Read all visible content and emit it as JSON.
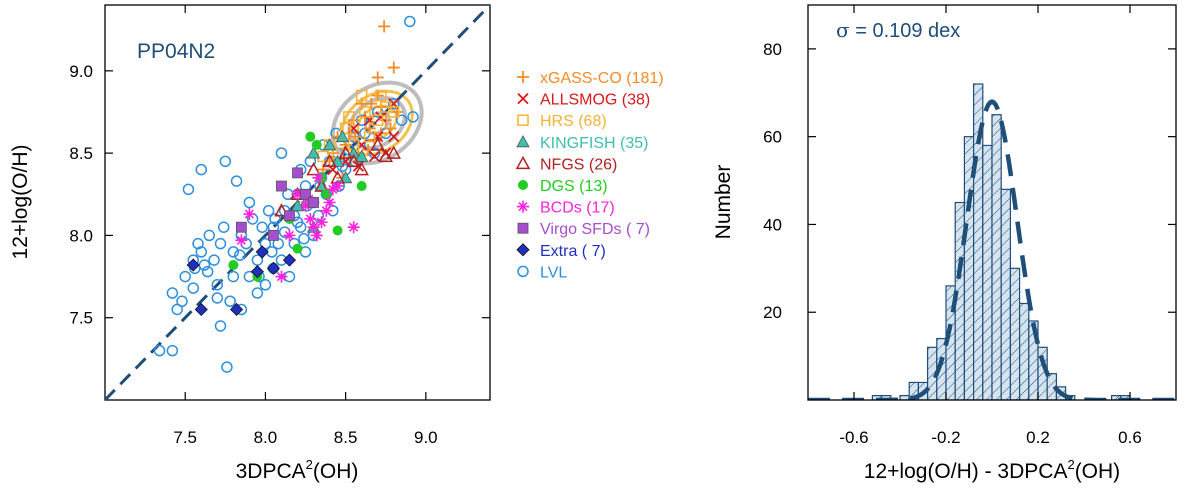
{
  "colors": {
    "axis": "#000000",
    "dash": "#1f4e79",
    "lvl": "#2e8fe0",
    "hist_fill": "#d6e4f0",
    "hist_stroke": "#1f4e79"
  },
  "chart_data": [
    {
      "type": "scatter",
      "title": "PP04N2",
      "xlabel_main": "3DPCA",
      "xlabel_sup": "2",
      "xlabel_tail": "(OH)",
      "ylabel": "12+log(O/H)",
      "xlim": [
        7.0,
        9.4
      ],
      "ylim": [
        7.0,
        9.4
      ],
      "xticks": [
        "7.5",
        "8.0",
        "8.5",
        "9.0"
      ],
      "yticks": [
        "7.5",
        "8.0",
        "8.5",
        "9.0"
      ],
      "one_to_one_line": true,
      "legend": [
        {
          "label": "xGASS-CO (181)",
          "marker": "plus",
          "color": "#f28c28"
        },
        {
          "label": "ALLSMOG (38)",
          "marker": "cross",
          "color": "#d7191c"
        },
        {
          "label": "HRS (68)",
          "marker": "square-open",
          "color": "#f5b335"
        },
        {
          "label": "KINGFISH (35)",
          "marker": "triangle-filled",
          "color": "#3fbfad"
        },
        {
          "label": "NFGS (26)",
          "marker": "triangle-open",
          "color": "#b22222"
        },
        {
          "label": "DGS (13)",
          "marker": "circle-filled",
          "color": "#22cc22"
        },
        {
          "label": "BCDs (17)",
          "marker": "asterisk",
          "color": "#ff22dd"
        },
        {
          "label": "Virgo SFDs ( 7)",
          "marker": "square-filled",
          "color": "#a64ecf"
        },
        {
          "label": "Extra ( 7)",
          "marker": "diamond-filled",
          "color": "#1f2fbf"
        },
        {
          "label": "LVL",
          "marker": "circle-open",
          "color": "#2e8fe0"
        }
      ],
      "series": [
        {
          "name": "LVL",
          "points": [
            [
              7.34,
              7.3
            ],
            [
              7.42,
              7.3
            ],
            [
              7.45,
              7.55
            ],
            [
              7.42,
              7.65
            ],
            [
              7.5,
              7.75
            ],
            [
              7.55,
              7.85
            ],
            [
              7.6,
              7.9
            ],
            [
              7.62,
              7.82
            ],
            [
              7.7,
              7.7
            ],
            [
              7.72,
              7.95
            ],
            [
              7.78,
              7.6
            ],
            [
              7.76,
              7.2
            ],
            [
              7.8,
              7.9
            ],
            [
              7.85,
              8.0
            ],
            [
              7.9,
              7.75
            ],
            [
              7.95,
              7.85
            ],
            [
              8.0,
              7.95
            ],
            [
              8.05,
              8.05
            ],
            [
              8.1,
              7.85
            ],
            [
              8.12,
              8.15
            ],
            [
              8.18,
              7.95
            ],
            [
              8.2,
              8.25
            ],
            [
              8.22,
              8.05
            ],
            [
              8.25,
              8.3
            ],
            [
              8.3,
              8.2
            ],
            [
              8.35,
              8.35
            ],
            [
              8.4,
              8.45
            ],
            [
              8.38,
              8.25
            ],
            [
              8.45,
              8.5
            ],
            [
              7.52,
              8.28
            ],
            [
              7.6,
              8.4
            ],
            [
              7.75,
              8.45
            ],
            [
              7.82,
              8.33
            ],
            [
              7.9,
              8.2
            ],
            [
              8.02,
              8.15
            ],
            [
              8.1,
              8.5
            ],
            [
              8.55,
              8.6
            ],
            [
              8.6,
              8.7
            ],
            [
              8.65,
              8.55
            ],
            [
              8.7,
              8.75
            ],
            [
              8.75,
              8.62
            ],
            [
              8.8,
              8.8
            ],
            [
              8.85,
              8.7
            ],
            [
              8.9,
              9.3
            ],
            [
              8.92,
              8.72
            ],
            [
              7.65,
              8.0
            ],
            [
              7.68,
              7.85
            ],
            [
              7.55,
              7.68
            ],
            [
              7.72,
              7.45
            ],
            [
              7.85,
              7.55
            ],
            [
              7.95,
              7.65
            ],
            [
              8.0,
              7.7
            ],
            [
              8.05,
              7.8
            ],
            [
              8.15,
              7.75
            ],
            [
              8.25,
              7.9
            ],
            [
              8.3,
              8.0
            ],
            [
              8.33,
              8.12
            ],
            [
              8.42,
              8.15
            ],
            [
              8.46,
              8.3
            ],
            [
              8.5,
              8.4
            ],
            [
              7.58,
              7.95
            ],
            [
              7.64,
              7.78
            ],
            [
              7.8,
              7.75
            ],
            [
              7.88,
              7.95
            ],
            [
              7.98,
              8.05
            ],
            [
              8.08,
              7.95
            ],
            [
              8.14,
              8.25
            ],
            [
              8.22,
              8.4
            ],
            [
              8.28,
              8.45
            ],
            [
              8.36,
              8.55
            ],
            [
              8.44,
              8.62
            ],
            [
              8.52,
              8.52
            ],
            [
              7.48,
              7.6
            ],
            [
              7.7,
              7.62
            ],
            [
              7.92,
              8.1
            ],
            [
              8.06,
              8.1
            ],
            [
              8.18,
              8.12
            ],
            [
              8.26,
              8.18
            ],
            [
              8.34,
              8.3
            ],
            [
              8.48,
              8.42
            ],
            [
              8.56,
              8.45
            ],
            [
              8.62,
              8.62
            ],
            [
              8.68,
              8.5
            ],
            [
              7.56,
              7.8
            ],
            [
              7.74,
              8.05
            ],
            [
              7.84,
              7.88
            ],
            [
              7.96,
              7.75
            ],
            [
              8.04,
              7.9
            ],
            [
              8.12,
              8.02
            ],
            [
              8.2,
              8.08
            ],
            [
              8.24,
              7.98
            ]
          ]
        },
        {
          "name": "xGASS-CO",
          "points": [
            [
              8.74,
              9.27
            ],
            [
              8.7,
              8.96
            ],
            [
              8.8,
              9.02
            ],
            [
              8.55,
              8.7
            ],
            [
              8.6,
              8.8
            ],
            [
              8.65,
              8.65
            ],
            [
              8.7,
              8.85
            ],
            [
              8.75,
              8.7
            ],
            [
              8.5,
              8.55
            ],
            [
              8.45,
              8.6
            ],
            [
              8.58,
              8.5
            ],
            [
              8.62,
              8.72
            ],
            [
              8.68,
              8.58
            ],
            [
              8.72,
              8.78
            ],
            [
              8.78,
              8.65
            ],
            [
              8.82,
              8.75
            ],
            [
              8.4,
              8.45
            ],
            [
              8.52,
              8.62
            ],
            [
              8.66,
              8.8
            ],
            [
              8.56,
              8.6
            ],
            [
              8.48,
              8.35
            ],
            [
              8.36,
              8.4
            ],
            [
              8.42,
              8.5
            ],
            [
              8.64,
              8.52
            ],
            [
              8.72,
              8.62
            ]
          ]
        },
        {
          "name": "ALLSMOG",
          "points": [
            [
              8.5,
              8.45
            ],
            [
              8.6,
              8.55
            ],
            [
              8.7,
              8.6
            ],
            [
              8.75,
              8.5
            ],
            [
              8.8,
              8.6
            ],
            [
              8.55,
              8.65
            ],
            [
              8.65,
              8.7
            ],
            [
              8.42,
              8.4
            ],
            [
              8.58,
              8.42
            ],
            [
              8.68,
              8.48
            ],
            [
              8.8,
              8.8
            ],
            [
              8.72,
              8.72
            ]
          ]
        },
        {
          "name": "HRS",
          "points": [
            [
              8.6,
              8.85
            ],
            [
              8.72,
              8.85
            ],
            [
              8.5,
              8.65
            ],
            [
              8.55,
              8.55
            ],
            [
              8.65,
              8.6
            ],
            [
              8.7,
              8.7
            ],
            [
              8.8,
              8.75
            ],
            [
              8.45,
              8.5
            ],
            [
              8.62,
              8.75
            ],
            [
              8.75,
              8.78
            ],
            [
              8.52,
              8.72
            ],
            [
              8.4,
              8.55
            ],
            [
              8.36,
              8.48
            ]
          ]
        },
        {
          "name": "KINGFISH",
          "points": [
            [
              8.3,
              8.5
            ],
            [
              8.4,
              8.55
            ],
            [
              8.45,
              8.45
            ],
            [
              8.5,
              8.35
            ],
            [
              8.55,
              8.5
            ],
            [
              8.35,
              8.3
            ],
            [
              8.25,
              8.2
            ],
            [
              8.48,
              8.6
            ],
            [
              8.6,
              8.48
            ],
            [
              8.2,
              8.18
            ],
            [
              8.3,
              8.05
            ]
          ]
        },
        {
          "name": "NFGS",
          "points": [
            [
              8.3,
              8.4
            ],
            [
              8.4,
              8.45
            ],
            [
              8.5,
              8.5
            ],
            [
              8.6,
              8.4
            ],
            [
              8.8,
              8.5
            ],
            [
              8.35,
              8.3
            ],
            [
              8.45,
              8.35
            ],
            [
              8.7,
              8.55
            ],
            [
              8.55,
              8.45
            ],
            [
              8.2,
              8.25
            ],
            [
              8.1,
              8.15
            ],
            [
              8.75,
              8.48
            ]
          ]
        },
        {
          "name": "DGS",
          "points": [
            [
              8.28,
              8.6
            ],
            [
              8.32,
              8.55
            ],
            [
              8.6,
              8.3
            ],
            [
              8.45,
              8.03
            ],
            [
              8.2,
              7.92
            ],
            [
              7.8,
              7.82
            ],
            [
              7.95,
              7.75
            ],
            [
              8.15,
              8.1
            ],
            [
              8.35,
              8.35
            ],
            [
              8.38,
              8.25
            ]
          ]
        },
        {
          "name": "BCDs",
          "points": [
            [
              8.3,
              8.05
            ],
            [
              8.32,
              8.0
            ],
            [
              8.28,
              8.1
            ],
            [
              8.35,
              8.08
            ],
            [
              8.55,
              8.05
            ],
            [
              8.45,
              8.3
            ],
            [
              8.4,
              8.2
            ],
            [
              8.38,
              8.15
            ],
            [
              8.25,
              8.18
            ],
            [
              8.2,
              8.25
            ],
            [
              7.9,
              8.13
            ],
            [
              7.85,
              7.97
            ],
            [
              8.15,
              8.0
            ],
            [
              8.1,
              7.75
            ],
            [
              8.33,
              8.35
            ],
            [
              8.42,
              8.28
            ],
            [
              8.27,
              8.22
            ]
          ]
        },
        {
          "name": "Virgo SFDs",
          "points": [
            [
              8.1,
              8.3
            ],
            [
              8.2,
              8.38
            ],
            [
              8.25,
              8.25
            ],
            [
              8.3,
              8.2
            ],
            [
              8.15,
              8.12
            ],
            [
              7.85,
              8.05
            ],
            [
              8.05,
              8.0
            ]
          ]
        },
        {
          "name": "Extra",
          "points": [
            [
              7.55,
              7.82
            ],
            [
              7.6,
              7.55
            ],
            [
              7.82,
              7.55
            ],
            [
              7.95,
              7.78
            ],
            [
              8.05,
              7.8
            ],
            [
              7.98,
              7.9
            ],
            [
              8.15,
              7.85
            ]
          ]
        }
      ],
      "contour_center": [
        8.7,
        8.7
      ]
    },
    {
      "type": "histogram",
      "annotation_sym": "σ",
      "annotation": " = 0.109 dex",
      "xlabel_main": "12+log(O/H) - 3DPCA",
      "xlabel_sup": "2",
      "xlabel_tail": "(OH)",
      "ylabel": "Number",
      "xlim": [
        -0.8,
        0.8
      ],
      "ylim": [
        0,
        90
      ],
      "xticks": [
        "-0.6",
        "-0.2",
        "0.2",
        "0.6"
      ],
      "yticks": [
        "20",
        "40",
        "60",
        "80"
      ],
      "bin_width": 0.04,
      "bins": [
        {
          "x": -0.5,
          "n": 1
        },
        {
          "x": -0.46,
          "n": 1
        },
        {
          "x": -0.38,
          "n": 1
        },
        {
          "x": -0.34,
          "n": 4
        },
        {
          "x": -0.3,
          "n": 4
        },
        {
          "x": -0.26,
          "n": 12
        },
        {
          "x": -0.22,
          "n": 14
        },
        {
          "x": -0.18,
          "n": 26
        },
        {
          "x": -0.14,
          "n": 45
        },
        {
          "x": -0.1,
          "n": 60
        },
        {
          "x": -0.06,
          "n": 72
        },
        {
          "x": -0.02,
          "n": 58
        },
        {
          "x": 0.02,
          "n": 65
        },
        {
          "x": 0.06,
          "n": 48
        },
        {
          "x": 0.1,
          "n": 30
        },
        {
          "x": 0.14,
          "n": 22
        },
        {
          "x": 0.18,
          "n": 18
        },
        {
          "x": 0.22,
          "n": 12
        },
        {
          "x": 0.26,
          "n": 6
        },
        {
          "x": 0.3,
          "n": 3
        },
        {
          "x": 0.34,
          "n": 1
        },
        {
          "x": 0.54,
          "n": 1
        },
        {
          "x": 0.58,
          "n": 1
        }
      ],
      "gaussian": {
        "mu": 0.0,
        "sigma": 0.109,
        "amplitude": 68
      }
    }
  ]
}
